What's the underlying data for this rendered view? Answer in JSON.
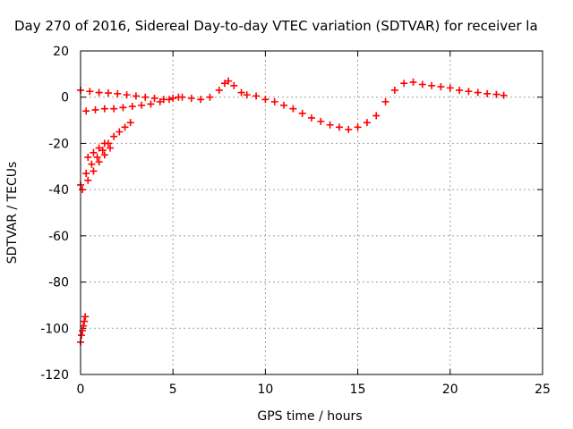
{
  "chart_data": {
    "type": "scatter",
    "title": "Day 270 of 2016, Sidereal Day-to-day VTEC variation (SDTVAR) for receiver la",
    "xlabel": "GPS time / hours",
    "ylabel": "SDTVAR / TECUs",
    "xlim": [
      0,
      25
    ],
    "ylim": [
      -120,
      20
    ],
    "xticks": [
      0,
      5,
      10,
      15,
      20,
      25
    ],
    "yticks": [
      20,
      0,
      -20,
      -40,
      -60,
      -80,
      -100,
      -120
    ],
    "grid": true,
    "marker": "+",
    "color": "#ff0000",
    "series": [
      {
        "x": [
          0.0,
          0.5,
          1.0,
          1.5,
          2.0,
          2.5,
          3.0,
          3.5,
          4.0,
          4.5,
          5.0,
          5.5,
          6.0,
          6.5,
          7.0,
          7.5,
          7.8,
          8.0,
          8.3,
          8.7,
          9.0,
          9.5,
          10.0,
          10.5,
          11.0,
          11.5,
          12.0,
          12.5,
          13.0,
          13.5,
          14.0,
          14.5,
          15.0,
          15.5,
          16.0,
          16.5,
          17.0,
          17.5,
          18.0,
          18.5,
          19.0,
          19.5,
          20.0,
          20.5,
          21.0,
          21.5,
          22.0,
          22.5,
          22.9
        ],
        "y": [
          3,
          2.5,
          2,
          1.8,
          1.5,
          1,
          0.5,
          0,
          -0.5,
          -1,
          -0.5,
          0,
          -0.5,
          -1,
          0,
          3,
          6,
          7,
          5,
          2,
          1,
          0.5,
          -1,
          -2,
          -3.5,
          -5,
          -7,
          -9,
          -10.5,
          -12,
          -13,
          -14,
          -13,
          -11,
          -8,
          -2,
          3,
          6,
          6.5,
          5.5,
          5,
          4.5,
          4,
          3,
          2.5,
          2,
          1.5,
          1.2,
          0.8
        ]
      },
      {
        "x": [
          0.3,
          0.8,
          1.3,
          1.8,
          2.3,
          2.8,
          3.3,
          3.8,
          4.3,
          4.8,
          5.3
        ],
        "y": [
          -6,
          -5.5,
          -5,
          -5,
          -4.5,
          -4,
          -3.5,
          -3,
          -2,
          -1,
          0
        ]
      },
      {
        "x": [
          0.0,
          0.3,
          0.6,
          0.9,
          1.2,
          1.5,
          1.8,
          2.1,
          2.4,
          2.7
        ],
        "y": [
          -38,
          -33,
          -29,
          -26,
          -23,
          -20,
          -17,
          -15,
          -13,
          -11
        ]
      },
      {
        "x": [
          0.1,
          0.4,
          0.7,
          1.0,
          1.3,
          1.6
        ],
        "y": [
          -40,
          -36,
          -32,
          -28,
          -25,
          -22
        ]
      },
      {
        "x": [
          0.4,
          0.7,
          1.0,
          1.3
        ],
        "y": [
          -26,
          -24,
          -22,
          -20
        ]
      },
      {
        "x": [
          0.0,
          0.05,
          0.1,
          0.15,
          0.2,
          0.25
        ],
        "y": [
          -106,
          -103,
          -101,
          -99,
          -97,
          -95
        ]
      }
    ]
  }
}
